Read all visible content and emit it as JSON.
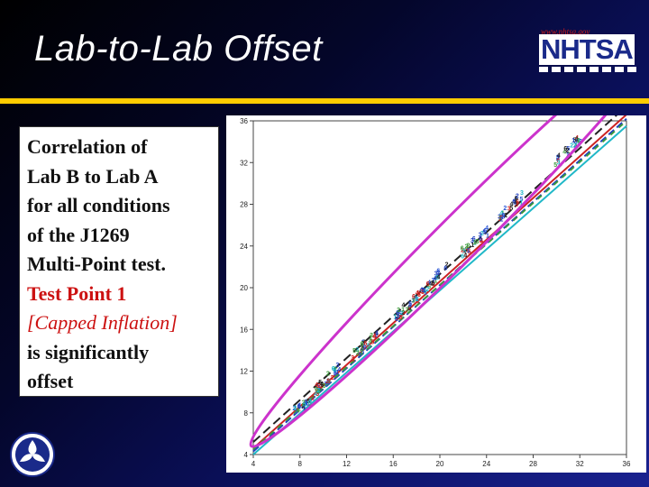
{
  "slide": {
    "title": "Lab-to-Lab Offset",
    "logo_url": "www.nhtsa.gov",
    "logo_text": "NHTSA"
  },
  "text": {
    "lines": [
      "Correlation of",
      "Lab B to Lab A",
      "for all conditions",
      "of the J1269",
      "Multi-Point test."
    ],
    "highlight": "Test Point 1",
    "highlight_italic": "[Capped Inflation]",
    "tail": [
      "is significantly",
      "offset"
    ]
  },
  "colors": {
    "rule": "#ffcc00",
    "highlight_text": "#cc1111",
    "ellipse": "#cc33cc"
  },
  "chart_data": {
    "type": "scatter",
    "xlim": [
      4,
      36
    ],
    "ylim": [
      4,
      36
    ],
    "x_ticks": [
      4,
      8,
      12,
      16,
      20,
      24,
      28,
      32,
      36
    ],
    "y_ticks": [
      4,
      8,
      12,
      16,
      20,
      24,
      28,
      32,
      36
    ],
    "grid": false,
    "legend": "none",
    "clusters": [
      {
        "x": 8.5,
        "y": 8.8
      },
      {
        "x": 10.5,
        "y": 11.3
      },
      {
        "x": 13.5,
        "y": 14.2
      },
      {
        "x": 17.2,
        "y": 18.0
      },
      {
        "x": 19.5,
        "y": 20.6
      },
      {
        "x": 23.0,
        "y": 24.2
      },
      {
        "x": 26.0,
        "y": 27.5
      },
      {
        "x": 31.0,
        "y": 33.0
      }
    ],
    "fit_lines": [
      {
        "color": "#1f3fbf",
        "dash": "8,4",
        "p1": [
          4,
          4.3
        ],
        "p2": [
          36,
          36.2
        ]
      },
      {
        "color": "#20b8c8",
        "dash": "",
        "p1": [
          4,
          4.0
        ],
        "p2": [
          36,
          35.5
        ]
      },
      {
        "color": "#cc2222",
        "dash": "",
        "p1": [
          4,
          4.6
        ],
        "p2": [
          36,
          36.6
        ]
      },
      {
        "color": "#222222",
        "dash": "10,5",
        "p1": [
          4,
          5.2
        ],
        "p2": [
          36,
          37.4
        ]
      },
      {
        "color": "#3c9a3c",
        "dash": "6,6",
        "p1": [
          4,
          4.5
        ],
        "p2": [
          36,
          36.0
        ]
      }
    ],
    "offset_ellipse": {
      "cx": 21.5,
      "cy": 24.6,
      "rx_len": 25.0,
      "ry_len": 1.9,
      "angle_deg": 45
    }
  }
}
